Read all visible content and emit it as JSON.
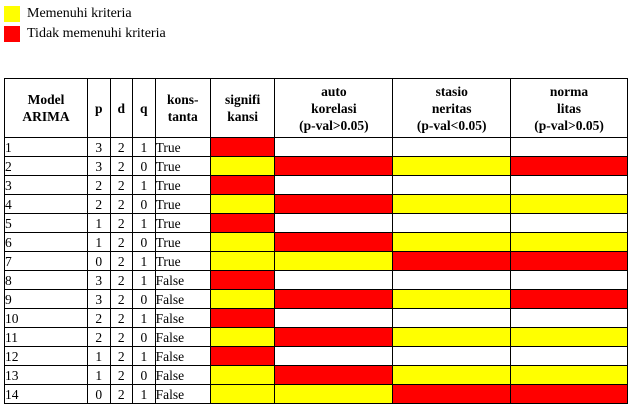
{
  "colors": {
    "yes": "#ffff00",
    "no": "#ff0000",
    "blank": "#ffffff"
  },
  "legend": [
    {
      "color": "#ffff00",
      "label": "Memenuhi kriteria"
    },
    {
      "color": "#ff0000",
      "label": "Tidak memenuhi kriteria"
    }
  ],
  "headers": {
    "model": [
      "Model",
      "ARIMA"
    ],
    "p": "p",
    "d": "d",
    "q": "q",
    "konstanta": [
      "kons-",
      "tanta"
    ],
    "signifikansi": [
      "signifi",
      "kansi"
    ],
    "autokorelasi": [
      "auto",
      "korelasi",
      "(p-val>0.05)"
    ],
    "stasioneritas": [
      "stasio",
      "neritas",
      "(p-val<0.05)"
    ],
    "normalitas": [
      "norma",
      "litas",
      "(p-val>0.05)"
    ]
  },
  "rows": [
    {
      "model": "1",
      "p": "3",
      "d": "2",
      "q": "1",
      "konstanta": "True",
      "status": [
        "no",
        "",
        "",
        ""
      ]
    },
    {
      "model": "2",
      "p": "3",
      "d": "2",
      "q": "0",
      "konstanta": "True",
      "status": [
        "yes",
        "no",
        "yes",
        "no"
      ]
    },
    {
      "model": "3",
      "p": "2",
      "d": "2",
      "q": "1",
      "konstanta": "True",
      "status": [
        "no",
        "",
        "",
        ""
      ]
    },
    {
      "model": "4",
      "p": "2",
      "d": "2",
      "q": "0",
      "konstanta": "True",
      "status": [
        "yes",
        "no",
        "yes",
        "yes"
      ]
    },
    {
      "model": "5",
      "p": "1",
      "d": "2",
      "q": "1",
      "konstanta": "True",
      "status": [
        "no",
        "",
        "",
        ""
      ]
    },
    {
      "model": "6",
      "p": "1",
      "d": "2",
      "q": "0",
      "konstanta": "True",
      "status": [
        "yes",
        "no",
        "yes",
        "yes"
      ]
    },
    {
      "model": "7",
      "p": "0",
      "d": "2",
      "q": "1",
      "konstanta": "True",
      "status": [
        "yes",
        "yes",
        "no",
        "no"
      ]
    },
    {
      "model": "8",
      "p": "3",
      "d": "2",
      "q": "1",
      "konstanta": "False",
      "status": [
        "no",
        "",
        "",
        ""
      ]
    },
    {
      "model": "9",
      "p": "3",
      "d": "2",
      "q": "0",
      "konstanta": "False",
      "status": [
        "yes",
        "no",
        "yes",
        "no"
      ]
    },
    {
      "model": "10",
      "p": "2",
      "d": "2",
      "q": "1",
      "konstanta": "False",
      "status": [
        "no",
        "",
        "",
        ""
      ]
    },
    {
      "model": "11",
      "p": "2",
      "d": "2",
      "q": "0",
      "konstanta": "False",
      "status": [
        "yes",
        "no",
        "yes",
        "yes"
      ]
    },
    {
      "model": "12",
      "p": "1",
      "d": "2",
      "q": "1",
      "konstanta": "False",
      "status": [
        "no",
        "",
        "",
        ""
      ]
    },
    {
      "model": "13",
      "p": "1",
      "d": "2",
      "q": "0",
      "konstanta": "False",
      "status": [
        "yes",
        "no",
        "yes",
        "yes"
      ]
    },
    {
      "model": "14",
      "p": "0",
      "d": "2",
      "q": "1",
      "konstanta": "False",
      "status": [
        "yes",
        "yes",
        "no",
        "no"
      ]
    }
  ]
}
